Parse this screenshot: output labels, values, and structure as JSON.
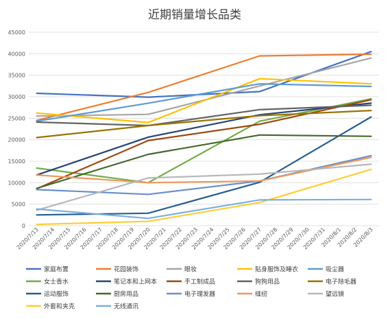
{
  "chart_data": {
    "type": "line",
    "title": "近期销量增长品类",
    "xlabel": "",
    "ylabel": "",
    "ylim": [
      0,
      45000
    ],
    "yticks": [
      0,
      5000,
      10000,
      15000,
      20000,
      25000,
      30000,
      35000,
      40000,
      45000
    ],
    "grid": true,
    "legend": "bottom",
    "x": [
      "2020/7/13",
      "2020/7/14",
      "2020/7/15",
      "2020/7/16",
      "2020/7/17",
      "2020/7/18",
      "2020/7/19",
      "2020/7/20",
      "2020/7/21",
      "2020/7/22",
      "2020/7/23",
      "2020/7/24",
      "2020/7/25",
      "2020/7/26",
      "2020/7/27",
      "2020/7/28",
      "2020/7/29",
      "2020/7/30",
      "2020/7/31",
      "2020/8/1",
      "2020/8/2",
      "2020/8/3"
    ],
    "series": [
      {
        "name": "家庭布置",
        "color": "#4472C4",
        "points": [
          [
            0,
            30800
          ],
          [
            7,
            29900
          ],
          [
            14,
            31200
          ],
          [
            21,
            40500
          ]
        ]
      },
      {
        "name": "花园装饰",
        "color": "#ED7D31",
        "points": [
          [
            0,
            24500
          ],
          [
            7,
            31000
          ],
          [
            14,
            39500
          ],
          [
            21,
            39900
          ]
        ]
      },
      {
        "name": "眼妆",
        "color": "#A5A5A5",
        "points": [
          [
            0,
            25500
          ],
          [
            7,
            25900
          ],
          [
            14,
            32500
          ],
          [
            21,
            39000
          ]
        ]
      },
      {
        "name": "贴身服饰及睡衣",
        "color": "#FFC000",
        "points": [
          [
            0,
            26200
          ],
          [
            7,
            24000
          ],
          [
            14,
            34200
          ],
          [
            21,
            33000
          ]
        ]
      },
      {
        "name": "吸尘器",
        "color": "#5B9BD5",
        "points": [
          [
            0,
            24300
          ],
          [
            7,
            28500
          ],
          [
            14,
            33000
          ],
          [
            21,
            32400
          ]
        ]
      },
      {
        "name": "女士香水",
        "color": "#70AD47",
        "points": [
          [
            0,
            13400
          ],
          [
            7,
            10000
          ],
          [
            14,
            24300
          ],
          [
            21,
            29500
          ]
        ]
      },
      {
        "name": "笔记本和上网本",
        "color": "#264478",
        "points": [
          [
            0,
            11800
          ],
          [
            7,
            20600
          ],
          [
            14,
            25800
          ],
          [
            21,
            28500
          ]
        ]
      },
      {
        "name": "手工制成品",
        "color": "#9E480E",
        "points": [
          [
            0,
            8600
          ],
          [
            7,
            19800
          ],
          [
            14,
            23600
          ],
          [
            21,
            29300
          ]
        ]
      },
      {
        "name": "狗狗用品",
        "color": "#636363",
        "points": [
          [
            0,
            24100
          ],
          [
            7,
            23300
          ],
          [
            14,
            27000
          ],
          [
            21,
            28000
          ]
        ]
      },
      {
        "name": "电子除毛器",
        "color": "#997300",
        "points": [
          [
            0,
            20500
          ],
          [
            7,
            23300
          ],
          [
            14,
            25600
          ],
          [
            21,
            26800
          ]
        ]
      },
      {
        "name": "运动服饰",
        "color": "#255E91",
        "points": [
          [
            0,
            2500
          ],
          [
            7,
            2900
          ],
          [
            14,
            10100
          ],
          [
            21,
            25300
          ]
        ]
      },
      {
        "name": "厨房用品",
        "color": "#43682B",
        "points": [
          [
            0,
            8700
          ],
          [
            7,
            16600
          ],
          [
            14,
            21100
          ],
          [
            21,
            20800
          ]
        ]
      },
      {
        "name": "电子理发器",
        "color": "#698ED0",
        "points": [
          [
            0,
            8400
          ],
          [
            7,
            7300
          ],
          [
            14,
            10400
          ],
          [
            21,
            16300
          ]
        ]
      },
      {
        "name": "缝纫",
        "color": "#F1975A",
        "points": [
          [
            0,
            11800
          ],
          [
            7,
            10000
          ],
          [
            14,
            10400
          ],
          [
            21,
            15900
          ]
        ]
      },
      {
        "name": "望远镜",
        "color": "#B7B7B7",
        "points": [
          [
            0,
            3600
          ],
          [
            7,
            11100
          ],
          [
            14,
            12000
          ],
          [
            21,
            14300
          ]
        ]
      },
      {
        "name": "外套和夹克",
        "color": "#FFCD33",
        "points": [
          [
            0,
            300
          ],
          [
            7,
            1000
          ],
          [
            14,
            5400
          ],
          [
            21,
            13100
          ]
        ]
      },
      {
        "name": "无线通讯",
        "color": "#7CAFDD",
        "points": [
          [
            0,
            3900
          ],
          [
            7,
            1700
          ],
          [
            14,
            6000
          ],
          [
            21,
            6100
          ]
        ]
      }
    ]
  }
}
